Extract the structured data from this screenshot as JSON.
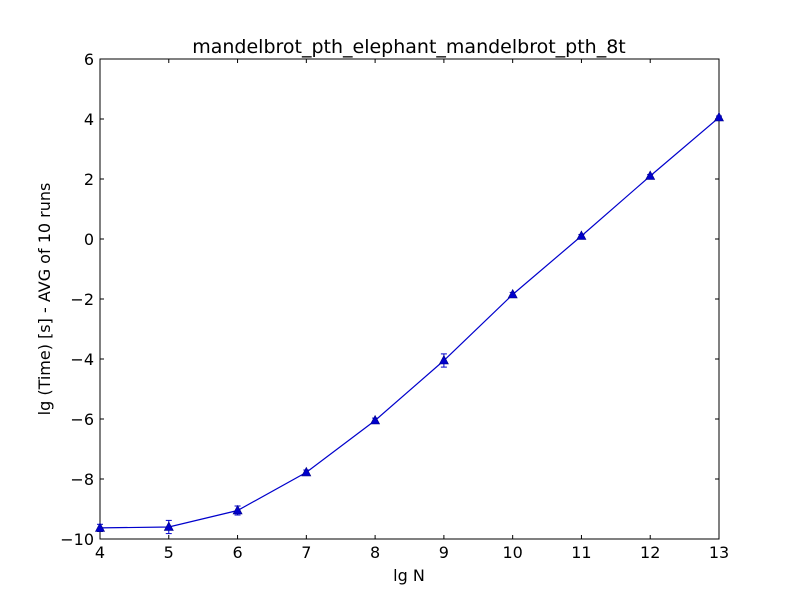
{
  "chart_data": {
    "type": "line",
    "title": "mandelbrot_pth_elephant_mandelbrot_pth_8t",
    "xlabel": "lg N",
    "ylabel": "lg (Time) [s] - AVG of 10 runs",
    "xlim": [
      4,
      13
    ],
    "ylim": [
      -10,
      6
    ],
    "x_ticks": [
      4,
      5,
      6,
      7,
      8,
      9,
      10,
      11,
      12,
      13
    ],
    "y_ticks": [
      -10,
      -8,
      -6,
      -4,
      -2,
      0,
      2,
      4,
      6
    ],
    "x_tick_labels": [
      "4",
      "5",
      "6",
      "7",
      "8",
      "9",
      "10",
      "11",
      "12",
      "13"
    ],
    "y_tick_labels": [
      "−10",
      "−8",
      "−6",
      "−4",
      "−2",
      "0",
      "2",
      "4",
      "6"
    ],
    "grid": false,
    "series": [
      {
        "color": "#0000cc",
        "marker": "triangle-up",
        "x": [
          4,
          5,
          6,
          7,
          8,
          9,
          10,
          11,
          12,
          13
        ],
        "y": [
          -9.63,
          -9.6,
          -9.05,
          -7.78,
          -6.05,
          -4.05,
          -1.85,
          0.1,
          2.1,
          4.05
        ],
        "yerr": [
          0.12,
          0.22,
          0.15,
          0.08,
          0.08,
          0.22,
          0.07,
          0.05,
          0.05,
          0.05
        ]
      }
    ]
  }
}
